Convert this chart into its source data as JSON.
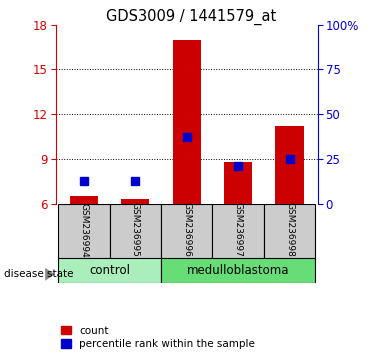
{
  "title": "GDS3009 / 1441579_at",
  "samples": [
    "GSM236994",
    "GSM236995",
    "GSM236996",
    "GSM236997",
    "GSM236998"
  ],
  "groups": [
    "control",
    "control",
    "medulloblastoma",
    "medulloblastoma",
    "medulloblastoma"
  ],
  "red_bar_values": [
    6.5,
    6.3,
    17.0,
    8.8,
    11.2
  ],
  "blue_marker_values": [
    7.5,
    7.5,
    10.5,
    8.5,
    9.0
  ],
  "ylim_left": [
    6,
    18
  ],
  "ylim_right": [
    0,
    100
  ],
  "yticks_left": [
    6,
    9,
    12,
    15,
    18
  ],
  "yticks_right": [
    0,
    25,
    50,
    75,
    100
  ],
  "bar_bottom": 6,
  "red_color": "#cc0000",
  "blue_color": "#0000cc",
  "control_color": "#aaeebb",
  "medulloblastoma_color": "#66dd77",
  "disease_state_label": "disease state",
  "legend_count": "count",
  "legend_percentile": "percentile rank within the sample",
  "left_tick_color": "#cc0000",
  "right_tick_color": "#0000cc",
  "bar_width": 0.55,
  "blue_marker_size": 6,
  "sample_box_color": "#cccccc",
  "right_tick_labels": [
    "0",
    "25",
    "50",
    "75",
    "100%"
  ]
}
